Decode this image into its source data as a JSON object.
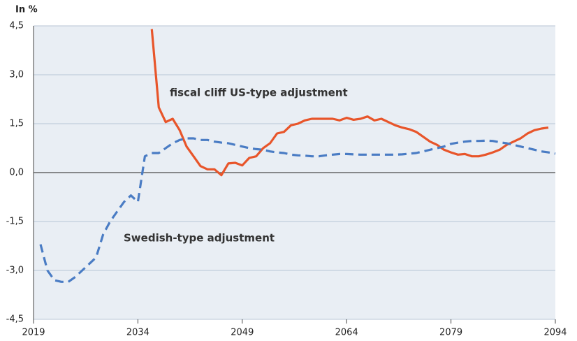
{
  "chart_data": {
    "type": "line",
    "ylabel": "In %",
    "x": [
      2020,
      2021,
      2022,
      2023,
      2024,
      2025,
      2026,
      2027,
      2028,
      2029,
      2030,
      2031,
      2032,
      2033,
      2034,
      2035,
      2036,
      2037,
      2038,
      2039,
      2040,
      2041,
      2042,
      2043,
      2044,
      2045,
      2046,
      2047,
      2048,
      2049,
      2050,
      2051,
      2052,
      2053,
      2054,
      2055,
      2056,
      2057,
      2058,
      2059,
      2060,
      2061,
      2062,
      2063,
      2064,
      2065,
      2066,
      2067,
      2068,
      2069,
      2070,
      2071,
      2072,
      2073,
      2074,
      2075,
      2076,
      2077,
      2078,
      2079,
      2080,
      2081,
      2082,
      2083,
      2084,
      2085,
      2086,
      2087,
      2088,
      2089,
      2090,
      2091,
      2092,
      2093,
      2094
    ],
    "series": [
      {
        "name": "fiscal cliff US-type adjustment",
        "color": "#e8552a",
        "line_style": "solid",
        "values": [
          null,
          null,
          null,
          null,
          null,
          null,
          null,
          null,
          null,
          null,
          null,
          null,
          null,
          null,
          null,
          null,
          4.4,
          2.0,
          1.55,
          1.65,
          1.3,
          0.8,
          0.5,
          0.2,
          0.1,
          0.1,
          -0.08,
          0.28,
          0.3,
          0.22,
          0.45,
          0.5,
          0.75,
          0.9,
          1.2,
          1.25,
          1.45,
          1.5,
          1.6,
          1.65,
          1.65,
          1.65,
          1.65,
          1.6,
          1.68,
          1.62,
          1.65,
          1.72,
          1.6,
          1.65,
          1.55,
          1.45,
          1.38,
          1.33,
          1.25,
          1.1,
          0.95,
          0.85,
          0.7,
          0.62,
          0.55,
          0.57,
          0.5,
          0.5,
          0.55,
          0.62,
          0.7,
          0.85,
          0.95,
          1.05,
          1.2,
          1.3,
          1.35,
          1.38,
          null
        ]
      },
      {
        "name": "Swedish-type adjustment",
        "color": "#4a7cc4",
        "line_style": "dashed",
        "values": [
          -2.2,
          -3.0,
          -3.3,
          -3.35,
          -3.35,
          -3.2,
          -3.0,
          -2.8,
          -2.6,
          -1.9,
          -1.5,
          -1.2,
          -0.9,
          -0.7,
          -0.9,
          0.5,
          0.6,
          0.6,
          0.75,
          0.9,
          1.0,
          1.05,
          1.05,
          1.0,
          1.0,
          0.95,
          0.92,
          0.9,
          0.85,
          0.8,
          0.75,
          0.72,
          0.7,
          0.65,
          0.62,
          0.6,
          0.55,
          0.53,
          0.52,
          0.5,
          0.5,
          0.53,
          0.55,
          0.57,
          0.57,
          0.56,
          0.55,
          0.55,
          0.55,
          0.55,
          0.55,
          0.55,
          0.56,
          0.58,
          0.6,
          0.65,
          0.7,
          0.75,
          0.8,
          0.88,
          0.92,
          0.95,
          0.97,
          0.97,
          0.98,
          0.97,
          0.93,
          0.9,
          0.85,
          0.8,
          0.75,
          0.7,
          0.65,
          0.62,
          0.58
        ]
      }
    ],
    "xlim": [
      2019,
      2094
    ],
    "xticks": [
      2019,
      2034,
      2049,
      2064,
      2079,
      2094
    ],
    "ylim": [
      -4.5,
      4.5
    ],
    "yticks": [
      {
        "value": -4.5,
        "label": "-4,5"
      },
      {
        "value": -3,
        "label": "-3,0"
      },
      {
        "value": -1.5,
        "label": "-1,5"
      },
      {
        "value": 0,
        "label": "0,0"
      },
      {
        "value": 1.5,
        "label": "1,5"
      },
      {
        "value": 3,
        "label": "3,0"
      },
      {
        "value": 4.5,
        "label": "4,5"
      }
    ],
    "grid": true
  }
}
